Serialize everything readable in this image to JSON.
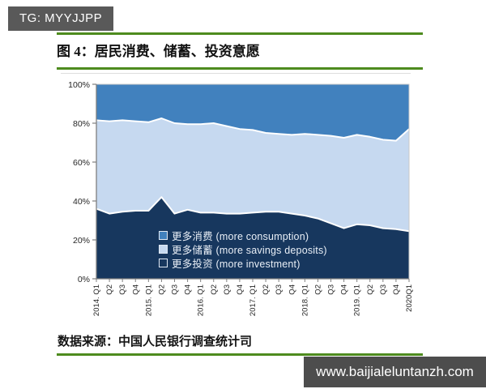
{
  "page": {
    "badge": "TG: MYYJJPP",
    "title": "图 4：居民消费、储蓄、投资意愿",
    "source": "数据来源：中国人民银行调查统计司",
    "banner": "www.baijialeluntanzh.com"
  },
  "colors": {
    "accent_green": "#4E8B1E",
    "badge_bg": "#595959",
    "banner_bg": "#4D4D4D",
    "axis": "#7f7f7f",
    "plot_border": "#c8c8c8",
    "boundary_line": "#ffffff"
  },
  "chart_data": {
    "type": "area",
    "stacked": true,
    "title": "居民消费、储蓄、投资意愿",
    "xlabel": "",
    "ylabel": "",
    "ylim": [
      0,
      100
    ],
    "grid": false,
    "legend_position": "inside-bottom-center",
    "categories": [
      "2014. Q1",
      "Q2",
      "Q3",
      "Q4",
      "2015. Q1",
      "Q2",
      "Q3",
      "Q4",
      "2016. Q1",
      "Q2",
      "Q3",
      "Q4",
      "2017. Q1",
      "Q2",
      "Q3",
      "Q4",
      "2018. Q1",
      "Q2",
      "Q3",
      "Q4",
      "2019. Q1",
      "Q2",
      "Q3",
      "Q4",
      "2020Q1"
    ],
    "yticks": [
      {
        "v": 0,
        "label": "0%"
      },
      {
        "v": 20,
        "label": "20%"
      },
      {
        "v": 40,
        "label": "40%"
      },
      {
        "v": 60,
        "label": "60%"
      },
      {
        "v": 80,
        "label": "80%"
      },
      {
        "v": 100,
        "label": "100%"
      }
    ],
    "series": [
      {
        "name": "更多投资 (more investment)",
        "color": "#17375E",
        "values": [
          36,
          33.5,
          34.5,
          35,
          35,
          42,
          33.5,
          35.5,
          34,
          34,
          33.5,
          33.5,
          34,
          34.5,
          34.5,
          33.5,
          32.5,
          31,
          28.5,
          26,
          28,
          27.5,
          26,
          25.5,
          24.5
        ]
      },
      {
        "name": "更多储蓄 (more savings deposits)",
        "color": "#C6D9F0",
        "values": [
          45.5,
          47.5,
          47,
          46,
          45.5,
          40.5,
          46.5,
          44,
          45.5,
          46,
          45,
          43.5,
          42.5,
          40.5,
          40,
          40.5,
          42,
          43,
          45,
          46.5,
          46,
          45.5,
          45.5,
          45.5,
          52.5
        ]
      },
      {
        "name": "更多消费 (more consumption)",
        "color": "#4181BE",
        "values": [
          18.5,
          19,
          18.5,
          19,
          19.5,
          17.5,
          20,
          20.5,
          20.5,
          20,
          21.5,
          23,
          23.5,
          25,
          25.5,
          26,
          25.5,
          26,
          26.5,
          27.5,
          26,
          27,
          28.5,
          29,
          23
        ]
      }
    ],
    "legend": {
      "items": [
        {
          "label": "更多消费 (more consumption)",
          "color": "#4181BE"
        },
        {
          "label": "更多储蓄 (more savings deposits)",
          "color": "#C6D9F0"
        },
        {
          "label": "更多投资 (more investment)",
          "color": "#17375E"
        }
      ]
    }
  }
}
